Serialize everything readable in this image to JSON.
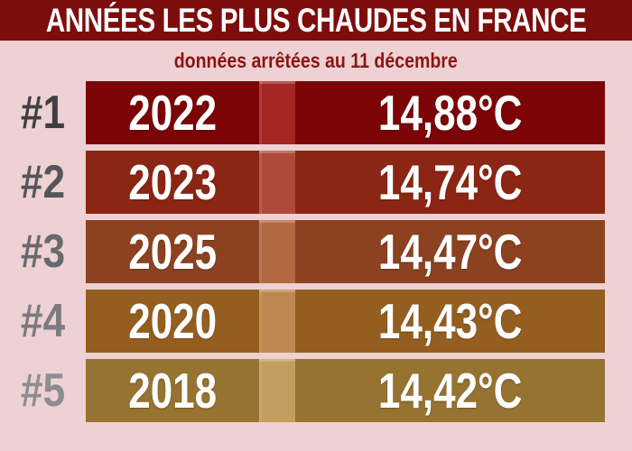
{
  "page": {
    "background_color": "#eed1d3"
  },
  "header": {
    "title": "ANNÉES LES PLUS CHAUDES EN FRANCE",
    "background_color": "#7d0d0d",
    "text_color": "#ffffff"
  },
  "subtitle": {
    "text": "données arrêtées au 11 décembre",
    "color": "#8c1414"
  },
  "ranking": {
    "rows": [
      {
        "rank": "#1",
        "year": "2022",
        "temp": "14,88°C",
        "bar_color": "#7c0407",
        "divider_color": "#a32622",
        "rank_color": "#3f3f42"
      },
      {
        "rank": "#2",
        "year": "2023",
        "temp": "14,74°C",
        "bar_color": "#8b2614",
        "divider_color": "#b04a38",
        "rank_color": "#55555a"
      },
      {
        "rank": "#3",
        "year": "2025",
        "temp": "14,47°C",
        "bar_color": "#8c4220",
        "divider_color": "#b2693f",
        "rank_color": "#69696d"
      },
      {
        "rank": "#4",
        "year": "2020",
        "temp": "14,43°C",
        "bar_color": "#945e20",
        "divider_color": "#bd8851",
        "rank_color": "#7b7b80"
      },
      {
        "rank": "#5",
        "year": "2018",
        "temp": "14,42°C",
        "bar_color": "#967331",
        "divider_color": "#c19d5e",
        "rank_color": "#8d8d92"
      }
    ]
  },
  "chart_data": {
    "type": "table",
    "title": "ANNÉES LES PLUS CHAUDES EN FRANCE",
    "subtitle": "données arrêtées au 11 décembre",
    "columns": [
      "rank",
      "year",
      "temperature_c"
    ],
    "rows": [
      [
        1,
        2022,
        14.88
      ],
      [
        2,
        2023,
        14.74
      ],
      [
        3,
        2025,
        14.47
      ],
      [
        4,
        2020,
        14.43
      ],
      [
        5,
        2018,
        14.42
      ]
    ],
    "units": "°C",
    "decimal_separator": ","
  }
}
